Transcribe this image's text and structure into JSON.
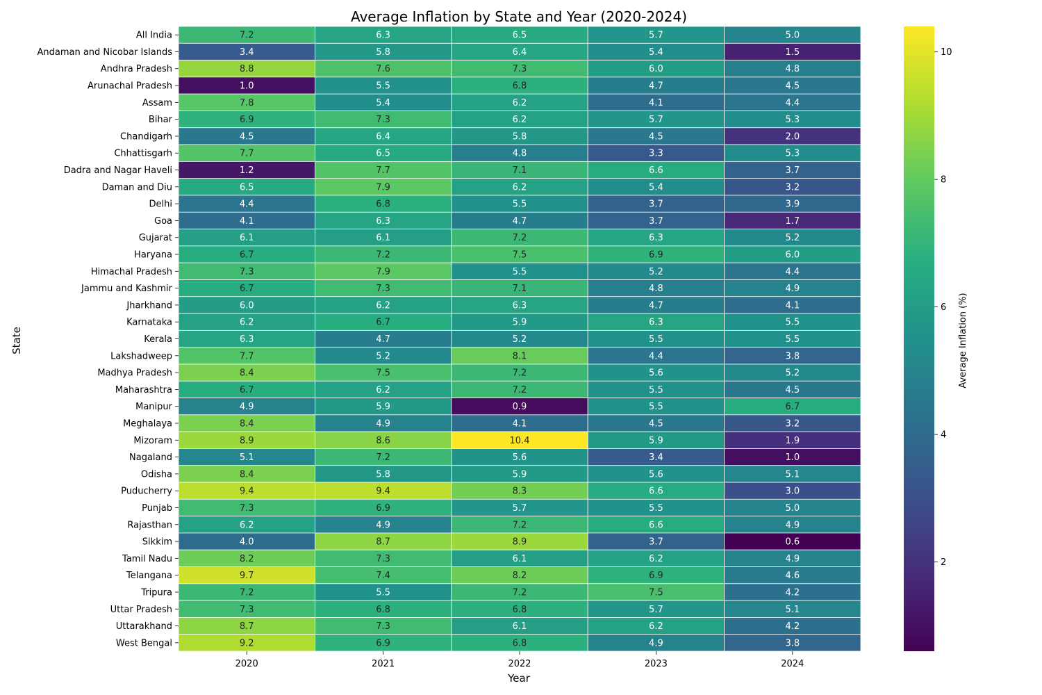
{
  "chart_data": {
    "type": "heatmap",
    "title": "Average Inflation by State and Year (2020-2024)",
    "xlabel": "Year",
    "ylabel": "State",
    "colorbar_label": "Average Inflation (%)",
    "colormap": "viridis",
    "color_range": [
      0.6,
      10.4
    ],
    "colorbar_ticks": [
      2,
      4,
      6,
      8,
      10
    ],
    "x": [
      "2020",
      "2021",
      "2022",
      "2023",
      "2024"
    ],
    "y": [
      "All India",
      "Andaman and Nicobar Islands",
      "Andhra Pradesh",
      "Arunachal Pradesh",
      "Assam",
      "Bihar",
      "Chandigarh",
      "Chhattisgarh",
      "Dadra and Nagar Haveli",
      "Daman and Diu",
      "Delhi",
      "Goa",
      "Gujarat",
      "Haryana",
      "Himachal Pradesh",
      "Jammu and Kashmir",
      "Jharkhand",
      "Karnataka",
      "Kerala",
      "Lakshadweep",
      "Madhya Pradesh",
      "Maharashtra",
      "Manipur",
      "Meghalaya",
      "Mizoram",
      "Nagaland",
      "Odisha",
      "Puducherry",
      "Punjab",
      "Rajasthan",
      "Sikkim",
      "Tamil Nadu",
      "Telangana",
      "Tripura",
      "Uttar Pradesh",
      "Uttarakhand",
      "West Bengal"
    ],
    "values": [
      [
        7.2,
        6.3,
        6.5,
        5.7,
        5.0
      ],
      [
        3.4,
        5.8,
        6.4,
        5.4,
        1.5
      ],
      [
        8.8,
        7.6,
        7.3,
        6.0,
        4.8
      ],
      [
        1.0,
        5.5,
        6.8,
        4.7,
        4.5
      ],
      [
        7.8,
        5.4,
        6.2,
        4.1,
        4.4
      ],
      [
        6.9,
        7.3,
        6.2,
        5.7,
        5.3
      ],
      [
        4.5,
        6.4,
        5.8,
        4.5,
        2.0
      ],
      [
        7.7,
        6.5,
        4.8,
        3.3,
        5.3
      ],
      [
        1.2,
        7.7,
        7.1,
        6.6,
        3.7
      ],
      [
        6.5,
        7.9,
        6.2,
        5.4,
        3.2
      ],
      [
        4.4,
        6.8,
        5.5,
        3.7,
        3.9
      ],
      [
        4.1,
        6.3,
        4.7,
        3.7,
        1.7
      ],
      [
        6.1,
        6.1,
        7.2,
        6.3,
        5.2
      ],
      [
        6.7,
        7.2,
        7.5,
        6.9,
        6.0
      ],
      [
        7.3,
        7.9,
        5.5,
        5.2,
        4.4
      ],
      [
        6.7,
        7.3,
        7.1,
        4.8,
        4.9
      ],
      [
        6.0,
        6.2,
        6.3,
        4.7,
        4.1
      ],
      [
        6.2,
        6.7,
        5.9,
        6.3,
        5.5
      ],
      [
        6.3,
        4.7,
        5.2,
        5.5,
        5.5
      ],
      [
        7.7,
        5.2,
        8.1,
        4.4,
        3.8
      ],
      [
        8.4,
        7.5,
        7.2,
        5.6,
        5.2
      ],
      [
        6.7,
        6.2,
        7.2,
        5.5,
        4.5
      ],
      [
        4.9,
        5.9,
        0.9,
        5.5,
        6.7
      ],
      [
        8.4,
        4.9,
        4.1,
        4.5,
        3.2
      ],
      [
        8.9,
        8.6,
        10.4,
        5.9,
        1.9
      ],
      [
        5.1,
        7.2,
        5.6,
        3.4,
        1.0
      ],
      [
        8.4,
        5.8,
        5.9,
        5.6,
        5.1
      ],
      [
        9.4,
        9.4,
        8.3,
        6.6,
        3.0
      ],
      [
        7.3,
        6.9,
        5.7,
        5.5,
        5.0
      ],
      [
        6.2,
        4.9,
        7.2,
        6.6,
        4.9
      ],
      [
        4.0,
        8.7,
        8.9,
        3.7,
        0.6
      ],
      [
        8.2,
        7.3,
        6.1,
        6.2,
        4.9
      ],
      [
        9.7,
        7.4,
        8.2,
        6.9,
        4.6
      ],
      [
        7.2,
        5.5,
        7.2,
        7.5,
        4.2
      ],
      [
        7.3,
        6.8,
        6.8,
        5.7,
        5.1
      ],
      [
        8.7,
        7.3,
        6.1,
        6.2,
        4.2
      ],
      [
        9.2,
        6.9,
        6.8,
        4.9,
        3.8
      ]
    ]
  }
}
